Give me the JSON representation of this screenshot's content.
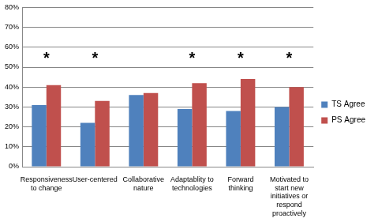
{
  "chart_data": {
    "type": "bar",
    "categories": [
      "Responsiveness to change",
      "User-centered",
      "Collaborative nature",
      "Adaptablity to technologies",
      "Forward thinking",
      "Motivated to start new initiatives or respond proactively"
    ],
    "series": [
      {
        "name": "TS Agree",
        "color": "#4f81bd",
        "values": [
          31,
          22,
          36,
          29,
          28,
          30
        ]
      },
      {
        "name": "PS Agree",
        "color": "#c0504d",
        "values": [
          41,
          33,
          37,
          42,
          44,
          40
        ]
      }
    ],
    "ylim": [
      0,
      80
    ],
    "yticks": [
      {
        "value": 0,
        "label": "0%"
      },
      {
        "value": 10,
        "label": "10%"
      },
      {
        "value": 20,
        "label": "20%"
      },
      {
        "value": 30,
        "label": "30%"
      },
      {
        "value": 40,
        "label": "40%"
      },
      {
        "value": 50,
        "label": "50%"
      },
      {
        "value": 60,
        "label": "60%"
      },
      {
        "value": 70,
        "label": "70%"
      },
      {
        "value": 80,
        "label": "80%"
      }
    ],
    "annotations": [
      {
        "x": "Responsiveness to change",
        "y": 54,
        "text": "*"
      },
      {
        "x": "User-centered",
        "y": 54,
        "text": "*"
      },
      {
        "x": "Adaptablity to technologies",
        "y": 54,
        "text": "*"
      },
      {
        "x": "Forward thinking",
        "y": 54,
        "text": "*"
      },
      {
        "x": "Motivated to start new initiatives or respond proactively",
        "y": 54,
        "text": "*"
      }
    ],
    "grid": true,
    "legend": "right"
  }
}
